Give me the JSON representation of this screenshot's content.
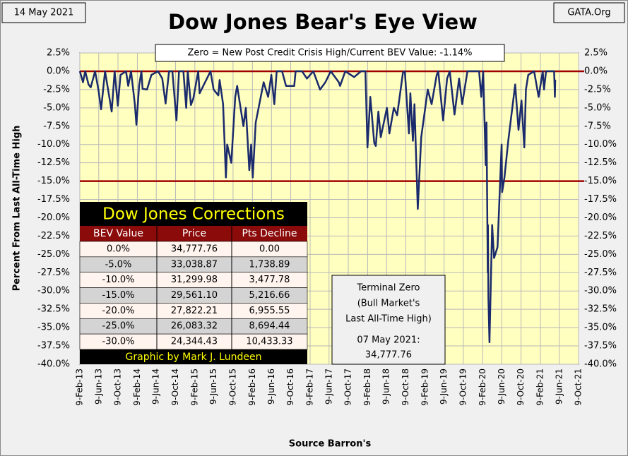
{
  "chart_data": {
    "type": "line",
    "title": "Dow Jones Bear's Eye View",
    "date_box": "14 May 2021",
    "source_box": "GATA.Org",
    "note": "Zero = New Post Credit Crisis High/Current  BEV Value:  -1.14%",
    "ylabel": "Percent From Last All-Time High",
    "xlabel": "Source Barron's",
    "grid": true,
    "plot_background": "#ffffc0",
    "hlines": [
      {
        "value": 0,
        "color": "#a00000"
      },
      {
        "value": -15,
        "color": "#a00000"
      }
    ],
    "ylim": [
      -40,
      2.5
    ],
    "yticks": [
      {
        "value": 2.5,
        "label": "2.5%"
      },
      {
        "value": 0,
        "label": "0.0%"
      },
      {
        "value": -2.5,
        "label": "-2.5%"
      },
      {
        "value": -5,
        "label": "-5.0%"
      },
      {
        "value": -7.5,
        "label": "-7.5%"
      },
      {
        "value": -10,
        "label": "-10.0%"
      },
      {
        "value": -12.5,
        "label": "-12.5%"
      },
      {
        "value": -15,
        "label": "-15.0%"
      },
      {
        "value": -17.5,
        "label": "-17.5%"
      },
      {
        "value": -20,
        "label": "-20.0%"
      },
      {
        "value": -22.5,
        "label": "-22.5%"
      },
      {
        "value": -25,
        "label": "-25.0%"
      },
      {
        "value": -27.5,
        "label": "-27.5%"
      },
      {
        "value": -30,
        "label": "-30.0%"
      },
      {
        "value": -32.5,
        "label": "-32.5%"
      },
      {
        "value": -35,
        "label": "-35.0%"
      },
      {
        "value": -37.5,
        "label": "-37.5%"
      },
      {
        "value": -40,
        "label": "-40.0%"
      }
    ],
    "xlim": [
      "2013-02-09",
      "2021-10-09"
    ],
    "xticks": [
      {
        "value": "2013-02-09",
        "label": "9-Feb-13"
      },
      {
        "value": "2013-06-09",
        "label": "9-Jun-13"
      },
      {
        "value": "2013-10-09",
        "label": "9-Oct-13"
      },
      {
        "value": "2014-02-09",
        "label": "9-Feb-14"
      },
      {
        "value": "2014-06-09",
        "label": "9-Jun-14"
      },
      {
        "value": "2014-10-09",
        "label": "9-Oct-14"
      },
      {
        "value": "2015-02-09",
        "label": "9-Feb-15"
      },
      {
        "value": "2015-06-09",
        "label": "9-Jun-15"
      },
      {
        "value": "2015-10-09",
        "label": "9-Oct-15"
      },
      {
        "value": "2016-02-09",
        "label": "9-Feb-16"
      },
      {
        "value": "2016-06-09",
        "label": "9-Jun-16"
      },
      {
        "value": "2016-10-09",
        "label": "9-Oct-16"
      },
      {
        "value": "2017-02-09",
        "label": "9-Feb-17"
      },
      {
        "value": "2017-06-09",
        "label": "9-Jun-17"
      },
      {
        "value": "2017-10-09",
        "label": "9-Oct-17"
      },
      {
        "value": "2018-02-09",
        "label": "9-Feb-18"
      },
      {
        "value": "2018-06-09",
        "label": "9-Jun-18"
      },
      {
        "value": "2018-10-09",
        "label": "9-Oct-18"
      },
      {
        "value": "2019-02-09",
        "label": "9-Feb-19"
      },
      {
        "value": "2019-06-09",
        "label": "9-Jun-19"
      },
      {
        "value": "2019-10-09",
        "label": "9-Oct-19"
      },
      {
        "value": "2020-02-09",
        "label": "9-Feb-20"
      },
      {
        "value": "2020-06-09",
        "label": "9-Jun-20"
      },
      {
        "value": "2020-10-09",
        "label": "9-Oct-20"
      },
      {
        "value": "2021-02-09",
        "label": "9-Feb-21"
      },
      {
        "value": "2021-06-09",
        "label": "9-Jun-21"
      },
      {
        "value": "2021-10-09",
        "label": "9-Oct-21"
      }
    ],
    "x": [
      "2013-02-09",
      "2013-03-01",
      "2013-03-15",
      "2013-04-05",
      "2013-04-19",
      "2013-05-17",
      "2013-06-07",
      "2013-06-24",
      "2013-07-19",
      "2013-08-15",
      "2013-08-30",
      "2013-09-18",
      "2013-10-08",
      "2013-10-25",
      "2013-11-29",
      "2013-12-13",
      "2013-12-31",
      "2014-01-24",
      "2014-02-03",
      "2014-02-20",
      "2014-03-07",
      "2014-03-14",
      "2014-04-11",
      "2014-05-09",
      "2014-06-20",
      "2014-07-17",
      "2014-08-07",
      "2014-08-29",
      "2014-09-19",
      "2014-10-15",
      "2014-10-31",
      "2014-11-28",
      "2014-12-16",
      "2014-12-26",
      "2015-01-15",
      "2015-01-30",
      "2015-03-02",
      "2015-03-11",
      "2015-05-19",
      "2015-06-08",
      "2015-07-08",
      "2015-07-16",
      "2015-08-07",
      "2015-08-25",
      "2015-09-02",
      "2015-09-28",
      "2015-10-23",
      "2015-11-04",
      "2015-12-14",
      "2015-12-29",
      "2016-01-20",
      "2016-02-01",
      "2016-02-11",
      "2016-03-01",
      "2016-04-20",
      "2016-05-19",
      "2016-06-08",
      "2016-06-27",
      "2016-07-12",
      "2016-08-15",
      "2016-09-09",
      "2016-10-31",
      "2016-11-09",
      "2016-12-20",
      "2017-01-20",
      "2017-03-01",
      "2017-04-13",
      "2017-05-17",
      "2017-06-20",
      "2017-08-10",
      "2017-08-18",
      "2017-09-20",
      "2017-11-15",
      "2017-12-29",
      "2018-01-26",
      "2018-02-08",
      "2018-02-26",
      "2018-03-23",
      "2018-04-02",
      "2018-04-18",
      "2018-05-03",
      "2018-06-11",
      "2018-06-27",
      "2018-07-25",
      "2018-08-15",
      "2018-09-21",
      "2018-10-03",
      "2018-10-29",
      "2018-11-07",
      "2018-11-23",
      "2018-12-03",
      "2018-12-24",
      "2019-01-15",
      "2019-02-25",
      "2019-03-22",
      "2019-04-23",
      "2019-05-03",
      "2019-06-03",
      "2019-06-28",
      "2019-07-15",
      "2019-08-14",
      "2019-09-12",
      "2019-10-02",
      "2019-11-04",
      "2019-12-27",
      "2020-01-17",
      "2020-01-31",
      "2020-02-12",
      "2020-02-28",
      "2020-03-04",
      "2020-03-12",
      "2020-03-13",
      "2020-03-16",
      "2020-03-23",
      "2020-04-09",
      "2020-04-21",
      "2020-05-13",
      "2020-06-08",
      "2020-06-11",
      "2020-06-26",
      "2020-07-20",
      "2020-09-02",
      "2020-09-23",
      "2020-10-12",
      "2020-10-30",
      "2020-11-09",
      "2020-11-24",
      "2020-12-31",
      "2021-01-29",
      "2021-02-24",
      "2021-03-04",
      "2021-03-17",
      "2021-04-16",
      "2021-05-07",
      "2021-05-12",
      "2021-05-14"
    ],
    "series": [
      {
        "name": "BEV",
        "color": "#1a2a6c",
        "values": [
          0,
          -1.5,
          0,
          -1.8,
          -2.2,
          0,
          -2.5,
          -5.2,
          0,
          -3.5,
          -5.5,
          0,
          -4.7,
          -0.5,
          0,
          -2,
          0,
          -4.5,
          -7.3,
          -2,
          0,
          -2.4,
          -2.5,
          -0.5,
          0,
          -1,
          -4.4,
          0,
          0,
          -6.7,
          0,
          0,
          -5,
          0,
          -4.6,
          -3.7,
          0,
          -3,
          0,
          -2.5,
          -3.3,
          -1.2,
          -4.5,
          -14.5,
          -10,
          -12.5,
          -3.5,
          -2,
          -7.5,
          -5,
          -13.5,
          -10,
          -14.5,
          -7,
          -1.5,
          -3.5,
          -0.5,
          -4.5,
          0,
          0,
          -2,
          -2,
          0,
          0,
          -1,
          0,
          -2.5,
          -1.5,
          0,
          -1.5,
          -2,
          0,
          -0.8,
          0,
          0,
          -10.4,
          -3.5,
          -9.8,
          -10.2,
          -5.5,
          -9,
          -5,
          -8.5,
          -5,
          -6,
          -0.2,
          0,
          -8.5,
          -3,
          -9.5,
          -4.5,
          -18.8,
          -9,
          -2.5,
          -4.5,
          -0.5,
          0,
          -6.7,
          -1,
          0,
          -5.9,
          -1,
          -4.5,
          0,
          0,
          0,
          -3.5,
          0,
          -12.8,
          -7,
          -27.5,
          -21,
          -31,
          -37,
          -21,
          -25.5,
          -24,
          -10,
          -16.5,
          -14.5,
          -9.5,
          -1.8,
          -8,
          -4,
          -10.4,
          -2.5,
          -0.5,
          0,
          -3.5,
          0,
          -2.5,
          0,
          0,
          0,
          -3.5,
          -1.14
        ]
      }
    ],
    "corrections_table": {
      "title": "Dow Jones Corrections",
      "columns": [
        "BEV Value",
        "Price",
        "Pts Decline"
      ],
      "rows": [
        [
          "0.0%",
          "34,777.76",
          "0.00"
        ],
        [
          "-5.0%",
          "33,038.87",
          "1,738.89"
        ],
        [
          "-10.0%",
          "31,299.98",
          "3,477.78"
        ],
        [
          "-15.0%",
          "29,561.10",
          "5,216.66"
        ],
        [
          "-20.0%",
          "27,822.21",
          "6,955.55"
        ],
        [
          "-25.0%",
          "26,083.32",
          "8,694.44"
        ],
        [
          "-30.0%",
          "24,344.43",
          "10,433.33"
        ]
      ],
      "footer": "Graphic by Mark J. Lundeen"
    },
    "terminal_zero": [
      "Terminal Zero",
      "(Bull Market's",
      "Last All-Time High)",
      "07 May 2021:",
      "34,777.76"
    ]
  }
}
